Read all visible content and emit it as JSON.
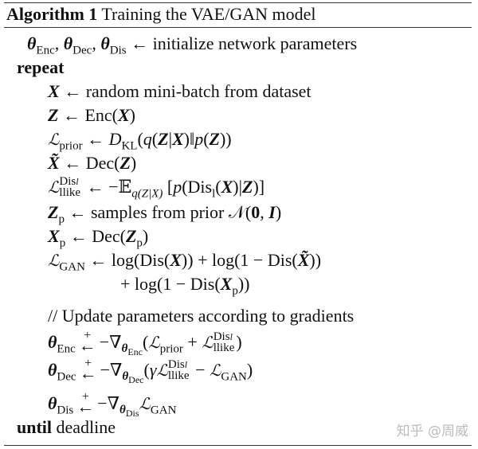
{
  "algorithm": {
    "label": "Algorithm 1",
    "title": "Training the VAE/GAN model",
    "lines": [
      {
        "indent": 1,
        "segs": [
          [
            "b",
            "θ"
          ],
          [
            "sub",
            "Enc"
          ],
          [
            "t",
            ", "
          ],
          [
            "b",
            "θ"
          ],
          [
            "sub",
            "Dec"
          ],
          [
            "t",
            ", "
          ],
          [
            "b",
            "θ"
          ],
          [
            "sub",
            "Dis"
          ],
          [
            "t",
            " ← initialize network parameters"
          ]
        ]
      },
      {
        "indent": 0.5,
        "segs": [
          [
            "k",
            "repeat"
          ]
        ]
      },
      {
        "indent": 2,
        "segs": [
          [
            "b",
            "X"
          ],
          [
            "t",
            " ← random mini-batch from dataset"
          ]
        ]
      },
      {
        "indent": 2,
        "segs": [
          [
            "b",
            "Z"
          ],
          [
            "t",
            " ← Enc("
          ],
          [
            "b",
            "X"
          ],
          [
            "t",
            ")"
          ]
        ]
      },
      {
        "indent": 2,
        "segs": [
          [
            "cal",
            "ℒ"
          ],
          [
            "sub",
            "prior"
          ],
          [
            "t",
            " ← "
          ],
          [
            "i",
            "D"
          ],
          [
            "sub",
            "KL"
          ],
          [
            "t",
            "("
          ],
          [
            "i",
            "q"
          ],
          [
            "t",
            "("
          ],
          [
            "b",
            "Z"
          ],
          [
            "t",
            "|"
          ],
          [
            "b",
            "X"
          ],
          [
            "t",
            ")‖"
          ],
          [
            "i",
            "p"
          ],
          [
            "t",
            "("
          ],
          [
            "b",
            "Z"
          ],
          [
            "t",
            "))"
          ]
        ]
      },
      {
        "indent": 2,
        "segs": [
          [
            "b",
            "X̃"
          ],
          [
            "t",
            " ← Dec("
          ],
          [
            "b",
            "Z"
          ],
          [
            "t",
            ")"
          ]
        ]
      },
      {
        "indent": 2,
        "segs": [
          [
            "cal",
            "ℒ"
          ],
          [
            "supsub",
            "Dis_l|llike"
          ],
          [
            "t",
            " ← −𝔼"
          ],
          [
            "sub",
            "q(Z|X)"
          ],
          [
            "t",
            " ["
          ],
          [
            "i",
            "p"
          ],
          [
            "t",
            "(Dis"
          ],
          [
            "sub",
            "l"
          ],
          [
            "t",
            "("
          ],
          [
            "b",
            "X"
          ],
          [
            "t",
            ")|"
          ],
          [
            "b",
            "Z"
          ],
          [
            "t",
            ")]"
          ]
        ]
      },
      {
        "indent": 2,
        "segs": [
          [
            "b",
            "Z"
          ],
          [
            "sub",
            "p"
          ],
          [
            "t",
            " ← samples from prior 𝒩("
          ],
          [
            "k",
            "0"
          ],
          [
            "t",
            ", "
          ],
          [
            "b",
            "I"
          ],
          [
            "t",
            ")"
          ]
        ]
      },
      {
        "indent": 2,
        "segs": [
          [
            "b",
            "X"
          ],
          [
            "sub",
            "p"
          ],
          [
            "t",
            " ← Dec("
          ],
          [
            "b",
            "Z"
          ],
          [
            "sub",
            "p"
          ],
          [
            "t",
            ")"
          ]
        ]
      },
      {
        "indent": 2,
        "segs": [
          [
            "cal",
            "ℒ"
          ],
          [
            "sub",
            "GAN"
          ],
          [
            "t",
            " ← log(Dis("
          ],
          [
            "b",
            "X"
          ],
          [
            "t",
            ")) + log(1 − Dis("
          ],
          [
            "b",
            "X̃"
          ],
          [
            "t",
            "))"
          ]
        ]
      },
      {
        "indent": 5.5,
        "segs": [
          [
            "t",
            "+ log(1 − Dis("
          ],
          [
            "b",
            "X"
          ],
          [
            "sub",
            "p"
          ],
          [
            "t",
            "))"
          ]
        ]
      },
      {
        "indent": 2,
        "segs": [
          [
            "t",
            "// Update parameters according to gradients"
          ]
        ]
      },
      {
        "indent": 2,
        "segs": [
          [
            "b",
            "θ"
          ],
          [
            "sub",
            "Enc"
          ],
          [
            "pa",
            "+"
          ],
          [
            "t",
            "−∇"
          ],
          [
            "sub",
            "θEnc"
          ],
          [
            "t",
            "("
          ],
          [
            "cal",
            "ℒ"
          ],
          [
            "sub",
            "prior"
          ],
          [
            "t",
            " + "
          ],
          [
            "cal",
            "ℒ"
          ],
          [
            "supsub",
            "Dis_l|llike"
          ],
          [
            "t",
            ")"
          ]
        ]
      },
      {
        "indent": 2,
        "segs": [
          [
            "b",
            "θ"
          ],
          [
            "sub",
            "Dec"
          ],
          [
            "pa",
            "+"
          ],
          [
            "t",
            "−∇"
          ],
          [
            "sub",
            "θDec"
          ],
          [
            "t",
            "("
          ],
          [
            "i",
            "γ"
          ],
          [
            "cal",
            "ℒ"
          ],
          [
            "supsub",
            "Dis_l|llike"
          ],
          [
            "t",
            " − "
          ],
          [
            "cal",
            "ℒ"
          ],
          [
            "sub",
            "GAN"
          ],
          [
            "t",
            ")"
          ]
        ]
      },
      {
        "indent": 2,
        "segs": [
          [
            "b",
            "θ"
          ],
          [
            "sub",
            "Dis"
          ],
          [
            "pa",
            "+"
          ],
          [
            "t",
            "−∇"
          ],
          [
            "sub",
            "θDis"
          ],
          [
            "cal",
            "ℒ"
          ],
          [
            "sub",
            "GAN"
          ]
        ]
      },
      {
        "indent": 0.5,
        "segs": [
          [
            "k",
            "until"
          ],
          [
            "t",
            " deadline"
          ]
        ]
      }
    ]
  },
  "watermark": "知乎 @周威"
}
